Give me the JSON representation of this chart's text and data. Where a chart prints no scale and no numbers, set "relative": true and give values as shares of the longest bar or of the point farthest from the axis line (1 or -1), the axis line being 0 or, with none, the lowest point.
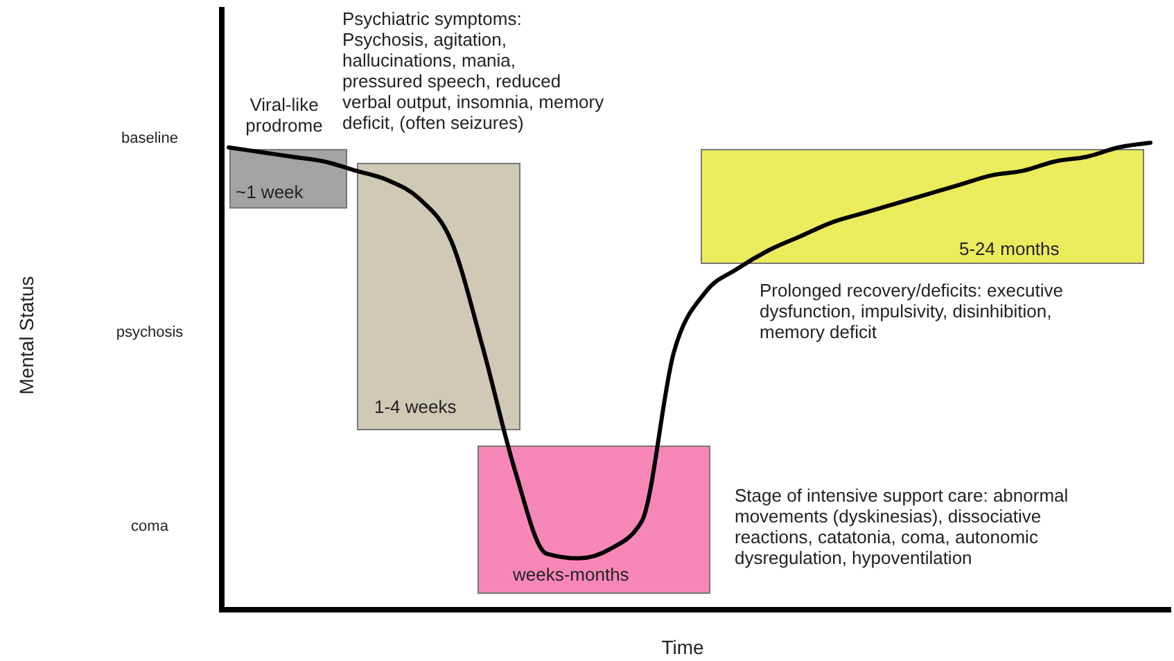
{
  "chart_data": {
    "type": "line",
    "relative": true,
    "xlabel": "Time",
    "categories": [
      null,
      null,
      null,
      null,
      null,
      null,
      null,
      null,
      null,
      null,
      null,
      null,
      null,
      null,
      null,
      null,
      null,
      null,
      null,
      null,
      null,
      null,
      null,
      null,
      null,
      null,
      null,
      null,
      null,
      null
    ],
    "series": [
      {
        "color": "#000000",
        "values": [
          0.99,
          0.98,
          0.97,
          0.96,
          0.94,
          0.92,
          0.88,
          0.79,
          0.56,
          0.3,
          0.12,
          0.11,
          0.13,
          0.19,
          0.55,
          0.68,
          0.73,
          0.77,
          0.8,
          0.83,
          0.85,
          0.87,
          0.89,
          0.91,
          0.93,
          0.94,
          0.96,
          0.97,
          0.99,
          1.0
        ]
      }
    ],
    "annotations": [
      "Viral-like prodrome",
      "~1 week",
      "Psychiatric symptoms: Psychosis, agitation, hallucinations, mania, pressured speech, reduced verbal output, insomnia, memory deficit, (often seizures)",
      "1-4 weeks",
      "weeks-months",
      "5-24 months",
      "Prolonged recovery/deficits: executive dysfunction, impulsivity, disinhibition, memory deficit",
      "Stage of intensive support care: abnormal movements (dyskinesias), dissociative reactions, catatonia, coma, autonomic dysregulation, hypoventilation",
      "baseline",
      "psychosis",
      "coma",
      "Mental Status"
    ],
    "marker": "none",
    "line_style": "solid"
  }
}
